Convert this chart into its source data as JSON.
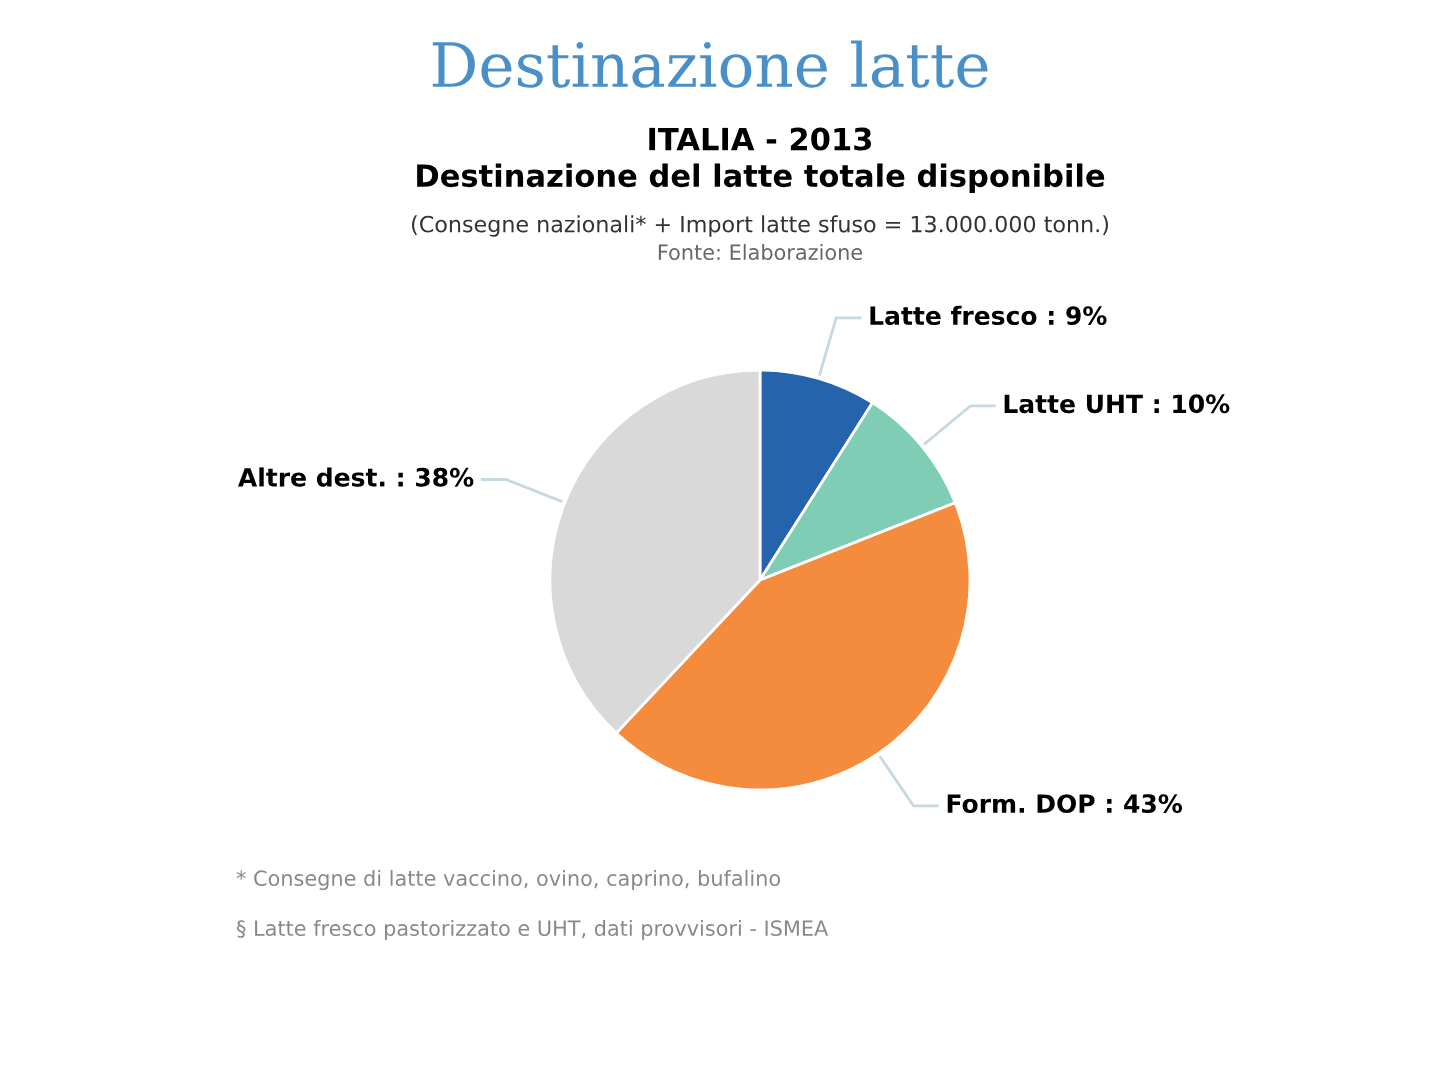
{
  "chart_data": {
    "type": "pie",
    "title": "Destinazione latte",
    "subtitle": "ITALIA - 2013\nDestinazione del latte totale disponibile",
    "categories": [
      "Latte fresco",
      "Latte UHT",
      "Form. DOP",
      "Altre dest."
    ],
    "values": [
      9,
      10,
      43,
      38
    ],
    "value_labels": [
      "9%",
      "10%",
      "43%",
      "38%"
    ],
    "colors": [
      "#2563ad",
      "#7fcdb5",
      "#f58b3c",
      "#d9d9d9"
    ],
    "annotations": [
      "(Consegne nazionali* + Import latte sfuso = 13.000.000 tonn.)",
      "Fonte: Elaborazione",
      "* Consegne di latte vaccino, ovino, caprino, bufalino",
      "§ Latte fresco pastorizzato e UHT, dati provvisori - ISMEA"
    ]
  }
}
